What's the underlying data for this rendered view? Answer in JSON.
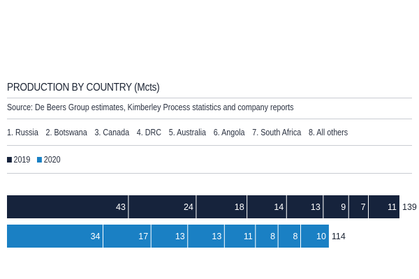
{
  "title": "PRODUCTION BY COUNTRY (Mcts)",
  "source": "Source: De Beers Group estimates, Kimberley Process statistics and company reports",
  "colors": {
    "y2019": "#16233c",
    "y2020": "#1a80c4",
    "text": "#1c2433",
    "rule": "#c9ccd2"
  },
  "chart_data": {
    "type": "bar",
    "stacked": true,
    "orientation": "horizontal",
    "title": "PRODUCTION BY COUNTRY (Mcts)",
    "subtitle": "Source: De Beers Group estimates, Kimberley Process statistics and company reports",
    "categories": [
      "1. Russia",
      "2. Botswana",
      "3. Canada",
      "4. DRC",
      "5. Australia",
      "6. Angola",
      "7. South Africa",
      "8. All others"
    ],
    "series": [
      {
        "name": "2019",
        "values": [
          43,
          24,
          18,
          14,
          13,
          9,
          7,
          11
        ],
        "total": 139,
        "color": "#16233c"
      },
      {
        "name": "2020",
        "values": [
          34,
          17,
          13,
          13,
          11,
          8,
          8,
          10
        ],
        "total": 114,
        "color": "#1a80c4"
      }
    ],
    "legend_position": "top-left",
    "grid": false
  }
}
